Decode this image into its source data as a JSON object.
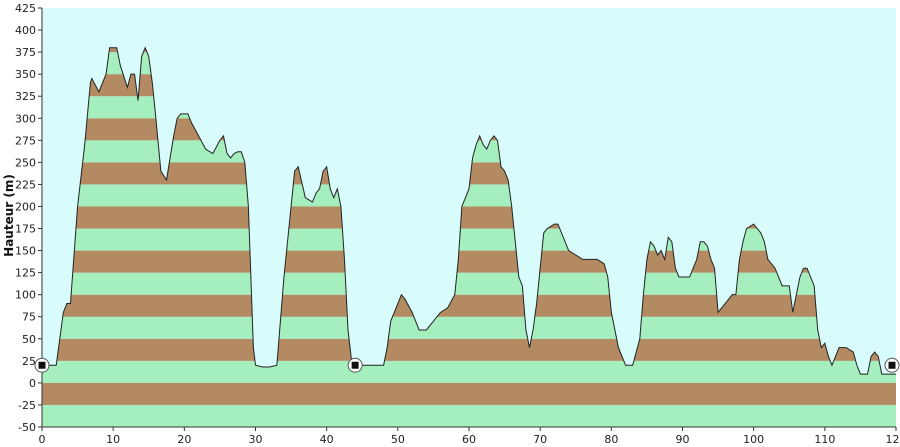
{
  "chart_data": {
    "type": "area",
    "ylabel": "Hauteur (m)",
    "xlabel": "",
    "xlim": [
      0,
      120
    ],
    "ylim": [
      -50,
      425
    ],
    "x_ticks": [
      "0",
      "10",
      "20",
      "30",
      "40",
      "50",
      "60",
      "70",
      "80",
      "90",
      "100",
      "110",
      "120"
    ],
    "y_ticks": [
      "425",
      "400",
      "375",
      "350",
      "325",
      "300",
      "275",
      "250",
      "225",
      "200",
      "175",
      "150",
      "125",
      "100",
      "75",
      "50",
      "25",
      "0",
      "-25",
      "-50"
    ],
    "grid": false,
    "background_color": "#d8fbfb",
    "band_colors": [
      "#a5eebe",
      "#b48a62"
    ],
    "band_height": 25,
    "outline_color": "#222222",
    "markers": [
      {
        "x": 0,
        "y": 20
      },
      {
        "x": 44,
        "y": 20
      },
      {
        "x": 120,
        "y": 20
      }
    ],
    "series": [
      {
        "points": [
          [
            0,
            20
          ],
          [
            2,
            20
          ],
          [
            3,
            80
          ],
          [
            3.5,
            90
          ],
          [
            4,
            90
          ],
          [
            5,
            200
          ],
          [
            6,
            270
          ],
          [
            6.8,
            340
          ],
          [
            7,
            345
          ],
          [
            8,
            330
          ],
          [
            9,
            350
          ],
          [
            9.5,
            380
          ],
          [
            10.5,
            380
          ],
          [
            11,
            360
          ],
          [
            12,
            335
          ],
          [
            12.5,
            350
          ],
          [
            13,
            350
          ],
          [
            13.5,
            320
          ],
          [
            14,
            370
          ],
          [
            14.5,
            380
          ],
          [
            15,
            370
          ],
          [
            15.5,
            340
          ],
          [
            16,
            300
          ],
          [
            16.7,
            240
          ],
          [
            17.5,
            230
          ],
          [
            18.5,
            280
          ],
          [
            19,
            300
          ],
          [
            19.5,
            305
          ],
          [
            20.5,
            305
          ],
          [
            21,
            295
          ],
          [
            22,
            280
          ],
          [
            23,
            265
          ],
          [
            24,
            260
          ],
          [
            25,
            275
          ],
          [
            25.5,
            280
          ],
          [
            26,
            260
          ],
          [
            26.5,
            255
          ],
          [
            27,
            260
          ],
          [
            27.5,
            262
          ],
          [
            28,
            262
          ],
          [
            28.5,
            250
          ],
          [
            29,
            200
          ],
          [
            29.7,
            40
          ],
          [
            30,
            20
          ],
          [
            31,
            18
          ],
          [
            32,
            18
          ],
          [
            33,
            20
          ],
          [
            34,
            120
          ],
          [
            35,
            200
          ],
          [
            35.5,
            240
          ],
          [
            36,
            245
          ],
          [
            37,
            210
          ],
          [
            38,
            205
          ],
          [
            38.5,
            215
          ],
          [
            39,
            220
          ],
          [
            39.5,
            240
          ],
          [
            40,
            245
          ],
          [
            40.5,
            220
          ],
          [
            41,
            210
          ],
          [
            41.5,
            220
          ],
          [
            42,
            200
          ],
          [
            42.5,
            140
          ],
          [
            43,
            60
          ],
          [
            43.5,
            25
          ],
          [
            44,
            20
          ],
          [
            45,
            20
          ],
          [
            48,
            20
          ],
          [
            48.5,
            40
          ],
          [
            49,
            70
          ],
          [
            50,
            90
          ],
          [
            50.5,
            100
          ],
          [
            51,
            95
          ],
          [
            52,
            80
          ],
          [
            53,
            60
          ],
          [
            54,
            60
          ],
          [
            55,
            70
          ],
          [
            56,
            80
          ],
          [
            57,
            85
          ],
          [
            58,
            100
          ],
          [
            58.5,
            140
          ],
          [
            59,
            200
          ],
          [
            60,
            220
          ],
          [
            60.5,
            255
          ],
          [
            61,
            270
          ],
          [
            61.5,
            280
          ],
          [
            62,
            270
          ],
          [
            62.5,
            265
          ],
          [
            63,
            275
          ],
          [
            63.5,
            280
          ],
          [
            64,
            275
          ],
          [
            64.5,
            245
          ],
          [
            65,
            240
          ],
          [
            65.5,
            230
          ],
          [
            66,
            200
          ],
          [
            66.5,
            160
          ],
          [
            67,
            120
          ],
          [
            67.5,
            110
          ],
          [
            68,
            60
          ],
          [
            68.5,
            40
          ],
          [
            69,
            60
          ],
          [
            69.5,
            90
          ],
          [
            70,
            130
          ],
          [
            70.5,
            170
          ],
          [
            71,
            175
          ],
          [
            72,
            180
          ],
          [
            72.5,
            180
          ],
          [
            73,
            170
          ],
          [
            74,
            150
          ],
          [
            75,
            145
          ],
          [
            76,
            140
          ],
          [
            78,
            140
          ],
          [
            79,
            135
          ],
          [
            79.5,
            120
          ],
          [
            80,
            80
          ],
          [
            80.5,
            60
          ],
          [
            81,
            40
          ],
          [
            82,
            20
          ],
          [
            83,
            20
          ],
          [
            84,
            50
          ],
          [
            84.5,
            100
          ],
          [
            85,
            140
          ],
          [
            85.5,
            160
          ],
          [
            86,
            155
          ],
          [
            86.5,
            145
          ],
          [
            87,
            150
          ],
          [
            87.5,
            140
          ],
          [
            88,
            165
          ],
          [
            88.5,
            160
          ],
          [
            89,
            130
          ],
          [
            89.5,
            120
          ],
          [
            90,
            120
          ],
          [
            91,
            120
          ],
          [
            91.5,
            130
          ],
          [
            92,
            140
          ],
          [
            92.5,
            160
          ],
          [
            93,
            160
          ],
          [
            93.5,
            155
          ],
          [
            94,
            140
          ],
          [
            94.5,
            130
          ],
          [
            95,
            80
          ],
          [
            96,
            90
          ],
          [
            97,
            100
          ],
          [
            97.5,
            100
          ],
          [
            98,
            140
          ],
          [
            98.5,
            160
          ],
          [
            99,
            175
          ],
          [
            100,
            180
          ],
          [
            100.5,
            175
          ],
          [
            101,
            170
          ],
          [
            101.5,
            160
          ],
          [
            102,
            140
          ],
          [
            103,
            130
          ],
          [
            103.5,
            120
          ],
          [
            104,
            110
          ],
          [
            105,
            110
          ],
          [
            105.5,
            80
          ],
          [
            106,
            100
          ],
          [
            106.5,
            120
          ],
          [
            107,
            130
          ],
          [
            107.5,
            130
          ],
          [
            108,
            120
          ],
          [
            108.5,
            110
          ],
          [
            109,
            60
          ],
          [
            109.5,
            40
          ],
          [
            110,
            45
          ],
          [
            110.5,
            30
          ],
          [
            111,
            20
          ],
          [
            111.5,
            30
          ],
          [
            112,
            40
          ],
          [
            113,
            40
          ],
          [
            114,
            35
          ],
          [
            114.5,
            20
          ],
          [
            115,
            10
          ],
          [
            116,
            10
          ],
          [
            116.5,
            30
          ],
          [
            117,
            35
          ],
          [
            117.5,
            30
          ],
          [
            118,
            10
          ],
          [
            119,
            10
          ],
          [
            120,
            10
          ]
        ]
      }
    ]
  }
}
